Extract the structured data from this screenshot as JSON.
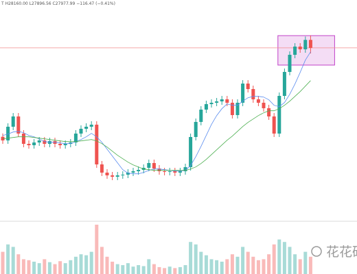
{
  "chart_data": {
    "type": "candlestick",
    "header": "T H28160.00 L27896.56 C27977.99 −116.47 (−0.41%)",
    "watermark": "花花研",
    "up_color": "#26a69a",
    "down_color": "#ef5350",
    "ylim": [
      25477,
      28677
    ],
    "volume_ylim": [
      0,
      100
    ],
    "open": [
      26680,
      26627,
      26827,
      26977,
      26727,
      26577,
      26557,
      26597,
      26627,
      26577,
      26617,
      26577,
      26557,
      26577,
      26597,
      26727,
      26797,
      26827,
      26857,
      26277,
      26157,
      26117,
      26097,
      26117,
      26127,
      26157,
      26177,
      26197,
      26227,
      26297,
      26217,
      26177,
      26167,
      26177,
      26157,
      26177,
      26237,
      26677,
      26897,
      27077,
      27157,
      27177,
      27197,
      27227,
      27177,
      26997,
      27177,
      27457,
      27377,
      27227,
      27177,
      27097,
      26977,
      26727,
      27277,
      27627,
      27877,
      27997,
      27957,
      28094.46
    ],
    "high": [
      26730,
      26877,
      27027,
      27027,
      26777,
      26627,
      26647,
      26677,
      26677,
      26667,
      26667,
      26627,
      26627,
      26647,
      26777,
      26847,
      26877,
      26907,
      26907,
      26327,
      26207,
      26167,
      26167,
      26177,
      26207,
      26227,
      26247,
      26277,
      26347,
      26347,
      26267,
      26227,
      26227,
      26227,
      26227,
      26287,
      26727,
      26947,
      27127,
      27207,
      27227,
      27247,
      27277,
      27277,
      27227,
      27227,
      27507,
      27507,
      27427,
      27277,
      27227,
      27147,
      27027,
      27327,
      27677,
      27927,
      28047,
      28047,
      28144.46,
      28160
    ],
    "low": [
      26577,
      26577,
      26777,
      26677,
      26527,
      26507,
      26507,
      26547,
      26527,
      26527,
      26527,
      26507,
      26507,
      26527,
      26547,
      26677,
      26747,
      26777,
      26227,
      26107,
      26067,
      26047,
      26047,
      26067,
      26077,
      26107,
      26127,
      26147,
      26177,
      26167,
      26127,
      26117,
      26117,
      26107,
      26107,
      26127,
      26187,
      26627,
      26847,
      27027,
      27107,
      27127,
      27147,
      27127,
      26947,
      26947,
      27127,
      27327,
      27177,
      27127,
      27047,
      26927,
      26677,
      26677,
      27227,
      27577,
      27827,
      27907,
      27907,
      27896.56
    ],
    "close": [
      26627,
      26827,
      26977,
      26727,
      26577,
      26557,
      26597,
      26627,
      26577,
      26617,
      26577,
      26557,
      26577,
      26597,
      26727,
      26797,
      26827,
      26857,
      26277,
      26157,
      26117,
      26097,
      26117,
      26127,
      26157,
      26177,
      26197,
      26227,
      26297,
      26217,
      26177,
      26167,
      26177,
      26157,
      26177,
      26237,
      26677,
      26897,
      27077,
      27157,
      27177,
      27197,
      27227,
      27177,
      26997,
      27177,
      27457,
      27377,
      27227,
      27177,
      27097,
      26977,
      26727,
      27277,
      27627,
      27877,
      27997,
      27957,
      28094.46,
      27977.99
    ],
    "volume": [
      45,
      60,
      55,
      40,
      30,
      28,
      25,
      22,
      30,
      24,
      20,
      26,
      22,
      28,
      35,
      40,
      38,
      45,
      100,
      55,
      35,
      25,
      20,
      18,
      22,
      15,
      18,
      16,
      30,
      20,
      14,
      12,
      15,
      12,
      14,
      18,
      65,
      60,
      45,
      38,
      30,
      28,
      25,
      30,
      40,
      35,
      55,
      45,
      35,
      28,
      30,
      40,
      60,
      70,
      65,
      55,
      40,
      30,
      45,
      35
    ],
    "series": [
      {
        "color": "#5b8def",
        "values": [
          26700,
          26720,
          26750,
          26760,
          26740,
          26700,
          26680,
          26650,
          26610,
          26600,
          26600,
          26590,
          26580,
          26580,
          26610,
          26640,
          26680,
          26730,
          26680,
          26600,
          26500,
          26400,
          26300,
          26200,
          26150,
          26140,
          26140,
          26160,
          26190,
          26210,
          26210,
          26200,
          26190,
          26180,
          26180,
          26190,
          26260,
          26390,
          26540,
          26700,
          26860,
          26990,
          27090,
          27160,
          27140,
          27140,
          27200,
          27250,
          27270,
          27270,
          27260,
          27220,
          27140,
          27120,
          27180,
          27300,
          27450,
          27620,
          27800,
          27920
        ]
      },
      {
        "color": "#4caf50",
        "values": [
          26650,
          26660,
          26670,
          26680,
          26680,
          26680,
          26670,
          26660,
          26650,
          26640,
          26630,
          26620,
          26610,
          26610,
          26610,
          26620,
          26630,
          26640,
          26620,
          26580,
          26530,
          26470,
          26410,
          26360,
          26310,
          26270,
          26240,
          26210,
          26200,
          26190,
          26190,
          26190,
          26190,
          26190,
          26190,
          26190,
          26210,
          26240,
          26290,
          26350,
          26420,
          26490,
          26560,
          26630,
          26690,
          26760,
          26830,
          26890,
          26940,
          26990,
          27030,
          27060,
          27060,
          27090,
          27140,
          27200,
          27270,
          27340,
          27420,
          27500
        ]
      }
    ],
    "highlight": {
      "ylim": [
        27727,
        28157
      ],
      "color": "#c040c8"
    },
    "price_line_color": "#f28b8b"
  }
}
